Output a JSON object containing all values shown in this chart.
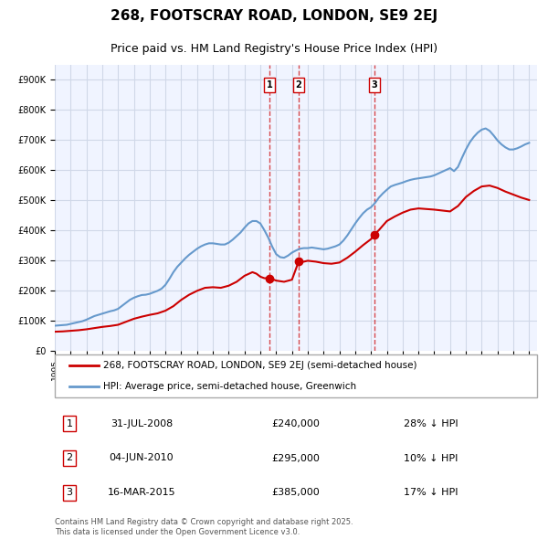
{
  "title": "268, FOOTSCRAY ROAD, LONDON, SE9 2EJ",
  "subtitle": "Price paid vs. HM Land Registry's House Price Index (HPI)",
  "legend_line1": "268, FOOTSCRAY ROAD, LONDON, SE9 2EJ (semi-detached house)",
  "legend_line2": "HPI: Average price, semi-detached house, Greenwich",
  "footer": "Contains HM Land Registry data © Crown copyright and database right 2025.\nThis data is licensed under the Open Government Licence v3.0.",
  "property_color": "#cc0000",
  "hpi_color": "#6699cc",
  "transaction_color": "#cc0000",
  "background_color": "#ffffff",
  "plot_bg_color": "#f0f4ff",
  "grid_color": "#d0d8e8",
  "ylim": [
    0,
    950000
  ],
  "yticks": [
    0,
    100000,
    200000,
    300000,
    400000,
    500000,
    600000,
    700000,
    800000,
    900000
  ],
  "xlim_start": 1995.0,
  "xlim_end": 2025.5,
  "transactions": [
    {
      "label": "1",
      "date": "31-JUL-2008",
      "date_x": 2008.58,
      "price": 240000,
      "pct": "28% ↓ HPI"
    },
    {
      "label": "2",
      "date": "04-JUN-2010",
      "date_x": 2010.42,
      "price": 295000,
      "pct": "10% ↓ HPI"
    },
    {
      "label": "3",
      "date": "16-MAR-2015",
      "date_x": 2015.21,
      "price": 385000,
      "pct": "17% ↓ HPI"
    }
  ],
  "hpi_data": {
    "years": [
      1995.0,
      1995.25,
      1995.5,
      1995.75,
      1996.0,
      1996.25,
      1996.5,
      1996.75,
      1997.0,
      1997.25,
      1997.5,
      1997.75,
      1998.0,
      1998.25,
      1998.5,
      1998.75,
      1999.0,
      1999.25,
      1999.5,
      1999.75,
      2000.0,
      2000.25,
      2000.5,
      2000.75,
      2001.0,
      2001.25,
      2001.5,
      2001.75,
      2002.0,
      2002.25,
      2002.5,
      2002.75,
      2003.0,
      2003.25,
      2003.5,
      2003.75,
      2004.0,
      2004.25,
      2004.5,
      2004.75,
      2005.0,
      2005.25,
      2005.5,
      2005.75,
      2006.0,
      2006.25,
      2006.5,
      2006.75,
      2007.0,
      2007.25,
      2007.5,
      2007.75,
      2008.0,
      2008.25,
      2008.5,
      2008.75,
      2009.0,
      2009.25,
      2009.5,
      2009.75,
      2010.0,
      2010.25,
      2010.5,
      2010.75,
      2011.0,
      2011.25,
      2011.5,
      2011.75,
      2012.0,
      2012.25,
      2012.5,
      2012.75,
      2013.0,
      2013.25,
      2013.5,
      2013.75,
      2014.0,
      2014.25,
      2014.5,
      2014.75,
      2015.0,
      2015.25,
      2015.5,
      2015.75,
      2016.0,
      2016.25,
      2016.5,
      2016.75,
      2017.0,
      2017.25,
      2017.5,
      2017.75,
      2018.0,
      2018.25,
      2018.5,
      2018.75,
      2019.0,
      2019.25,
      2019.5,
      2019.75,
      2020.0,
      2020.25,
      2020.5,
      2020.75,
      2021.0,
      2021.25,
      2021.5,
      2021.75,
      2022.0,
      2022.25,
      2022.5,
      2022.75,
      2023.0,
      2023.25,
      2023.5,
      2023.75,
      2024.0,
      2024.25,
      2024.5,
      2024.75,
      2025.0
    ],
    "values": [
      82000,
      83000,
      84000,
      85000,
      88000,
      91000,
      94000,
      97000,
      102000,
      108000,
      114000,
      118000,
      122000,
      126000,
      130000,
      133000,
      138000,
      148000,
      158000,
      168000,
      175000,
      180000,
      184000,
      185000,
      188000,
      193000,
      198000,
      205000,
      218000,
      238000,
      260000,
      278000,
      292000,
      306000,
      318000,
      328000,
      338000,
      346000,
      352000,
      356000,
      356000,
      354000,
      352000,
      352000,
      358000,
      368000,
      380000,
      392000,
      408000,
      422000,
      430000,
      430000,
      422000,
      400000,
      375000,
      345000,
      320000,
      310000,
      308000,
      315000,
      325000,
      332000,
      338000,
      340000,
      340000,
      342000,
      340000,
      338000,
      336000,
      338000,
      342000,
      346000,
      352000,
      365000,
      382000,
      402000,
      422000,
      440000,
      456000,
      468000,
      476000,
      490000,
      508000,
      522000,
      534000,
      545000,
      550000,
      554000,
      558000,
      563000,
      567000,
      570000,
      572000,
      574000,
      576000,
      578000,
      582000,
      588000,
      594000,
      600000,
      606000,
      596000,
      610000,
      640000,
      668000,
      692000,
      710000,
      724000,
      734000,
      738000,
      730000,
      715000,
      698000,
      685000,
      675000,
      668000,
      668000,
      672000,
      678000,
      685000,
      690000
    ]
  },
  "property_data": {
    "years": [
      1995.0,
      1995.5,
      1996.0,
      1996.5,
      1997.0,
      1997.5,
      1998.0,
      1998.5,
      1999.0,
      1999.5,
      2000.0,
      2000.5,
      2001.0,
      2001.5,
      2002.0,
      2002.5,
      2003.0,
      2003.5,
      2004.0,
      2004.5,
      2005.0,
      2005.5,
      2006.0,
      2006.5,
      2007.0,
      2007.5,
      2007.75,
      2008.0,
      2008.25,
      2008.58,
      2009.0,
      2009.5,
      2010.0,
      2010.42,
      2010.75,
      2011.0,
      2011.5,
      2012.0,
      2012.5,
      2013.0,
      2013.5,
      2014.0,
      2014.5,
      2015.0,
      2015.21,
      2015.5,
      2016.0,
      2016.5,
      2017.0,
      2017.5,
      2018.0,
      2018.5,
      2019.0,
      2019.5,
      2020.0,
      2020.5,
      2021.0,
      2021.5,
      2022.0,
      2022.5,
      2023.0,
      2023.5,
      2024.0,
      2024.5,
      2025.0
    ],
    "values": [
      62000,
      63000,
      65000,
      67000,
      70000,
      74000,
      78000,
      81000,
      85000,
      95000,
      105000,
      112000,
      118000,
      123000,
      132000,
      147000,
      168000,
      185000,
      198000,
      208000,
      210000,
      208000,
      215000,
      228000,
      248000,
      260000,
      255000,
      245000,
      240000,
      240000,
      232000,
      228000,
      235000,
      295000,
      295000,
      298000,
      295000,
      290000,
      288000,
      292000,
      308000,
      328000,
      350000,
      370000,
      385000,
      400000,
      430000,
      445000,
      458000,
      468000,
      472000,
      470000,
      468000,
      465000,
      462000,
      480000,
      510000,
      530000,
      545000,
      548000,
      540000,
      528000,
      518000,
      508000,
      500000
    ]
  }
}
